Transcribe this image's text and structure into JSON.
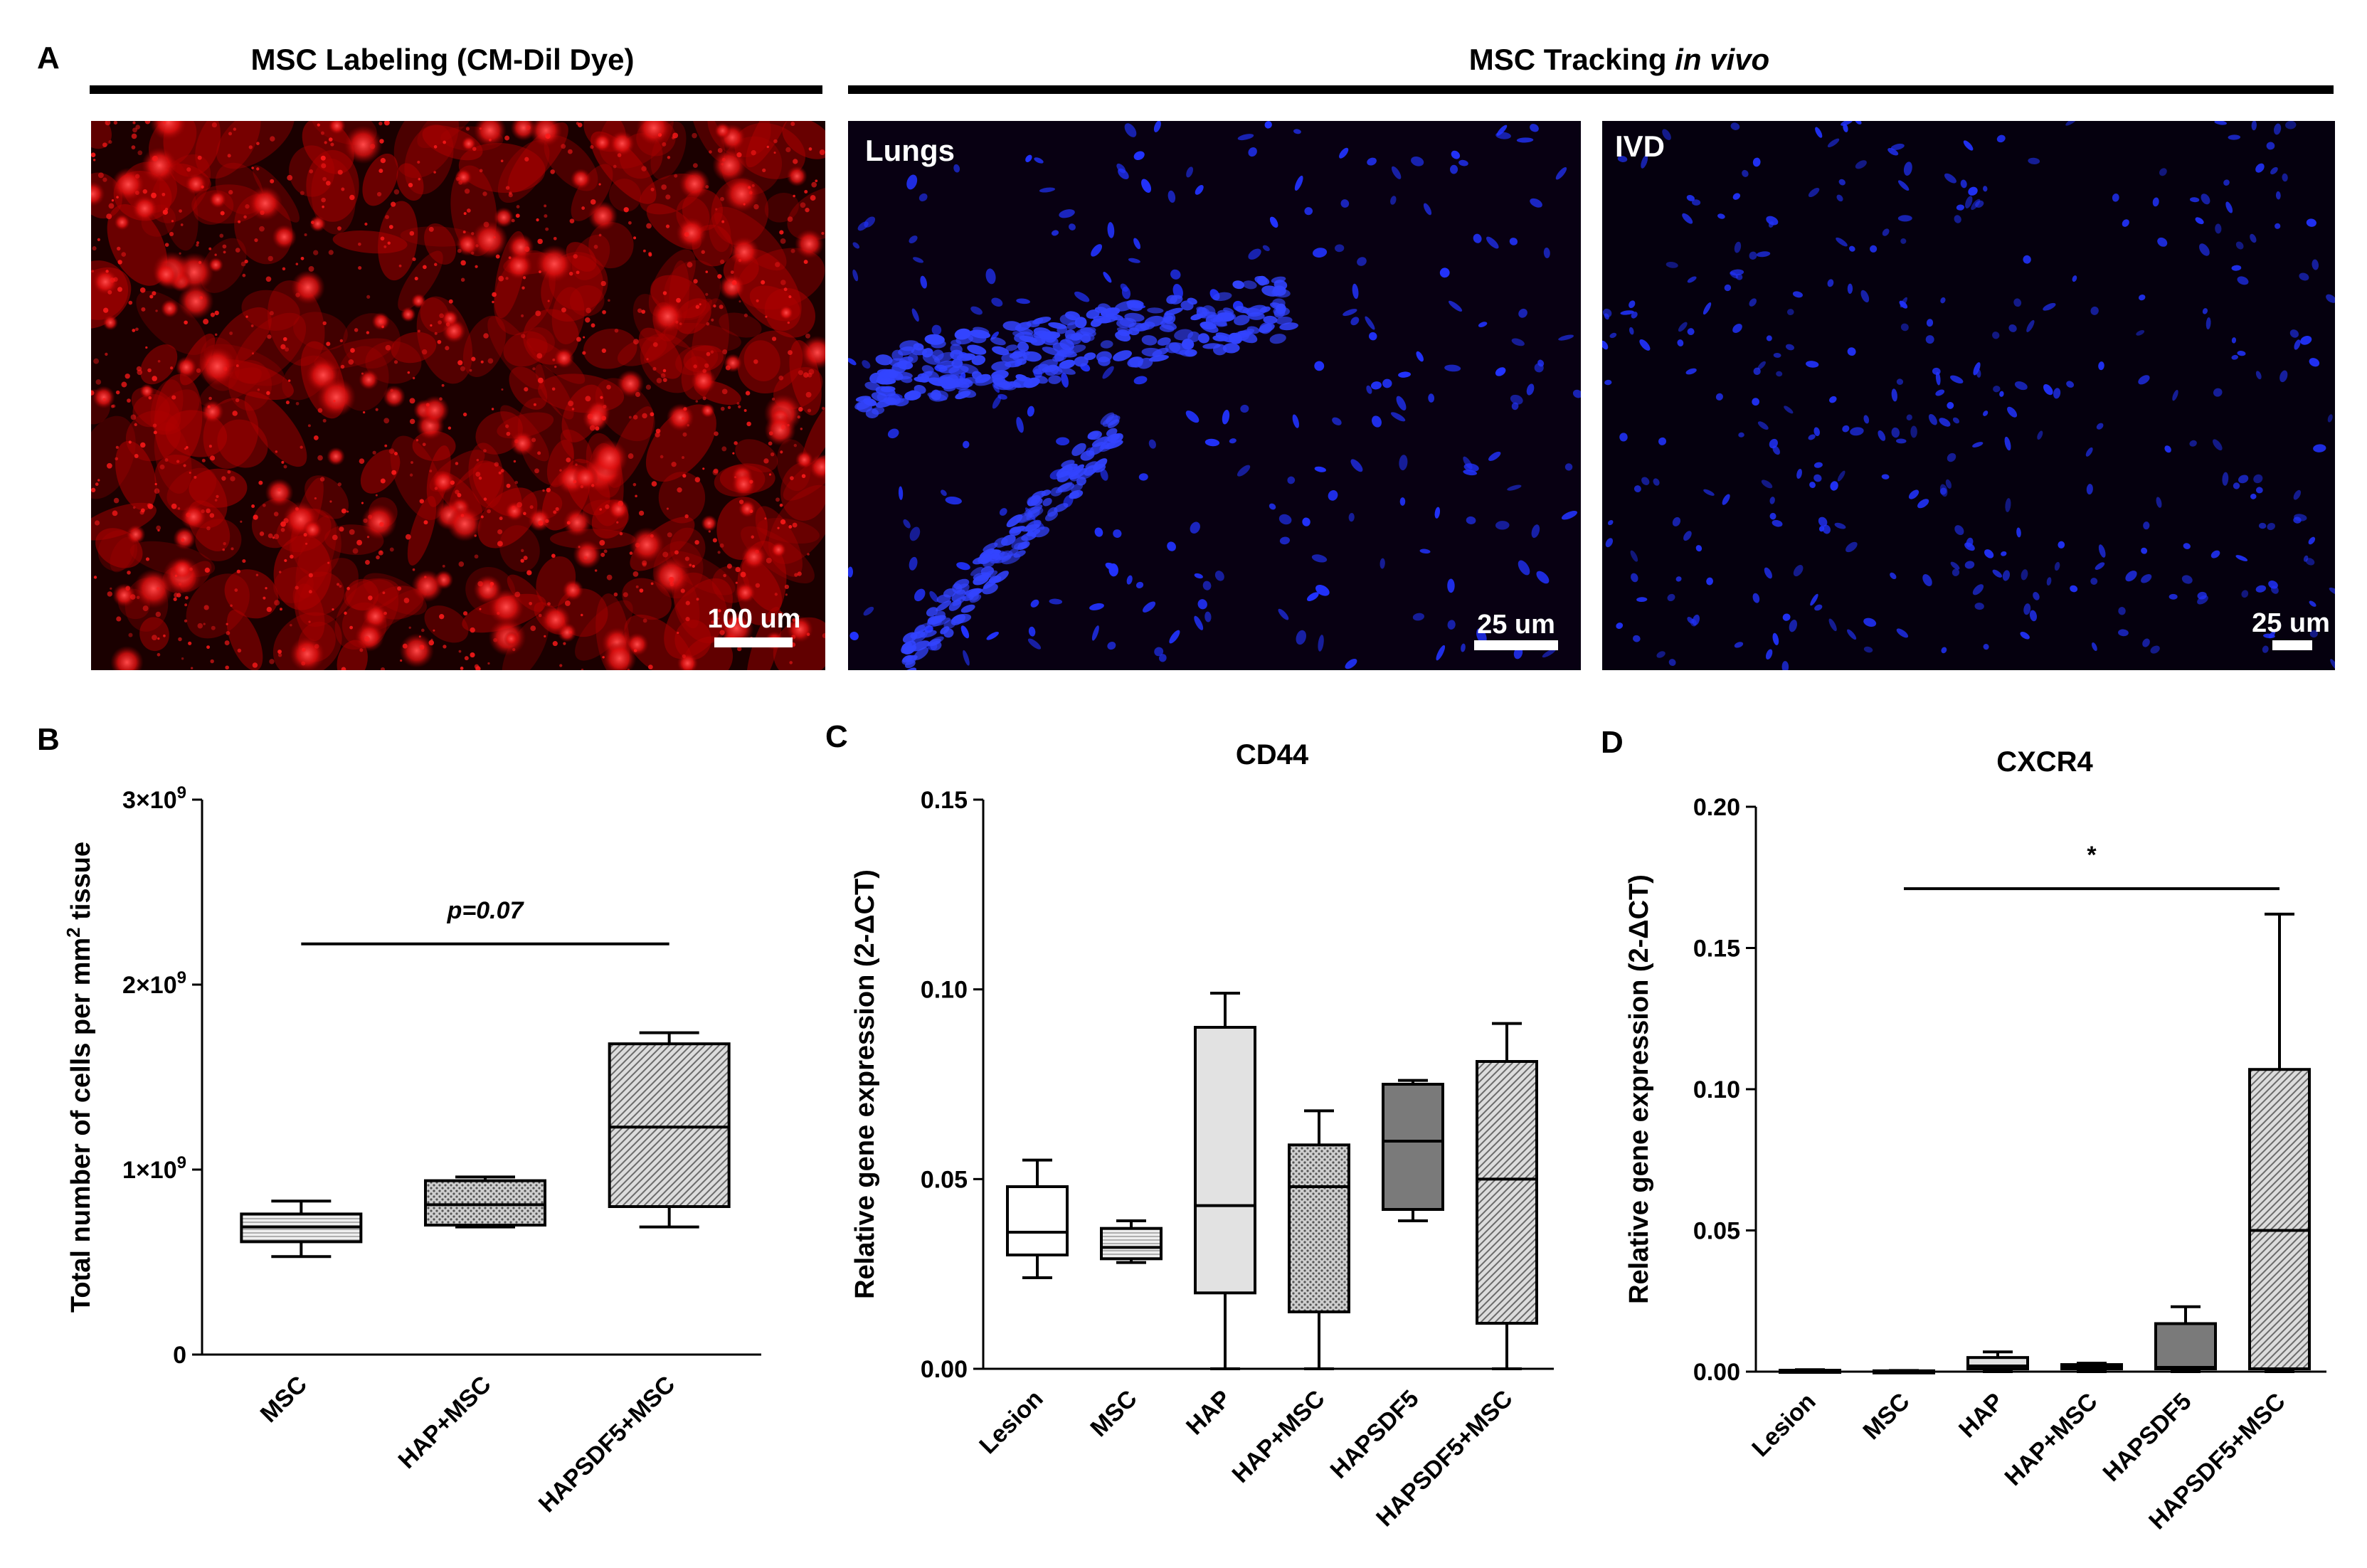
{
  "figure": {
    "panel_letters": {
      "a": "A",
      "b": "B",
      "c": "C",
      "d": "D"
    },
    "header_labeling": "MSC Labeling (CM-Dil Dye)",
    "header_tracking_prefix": "MSC Tracking ",
    "header_tracking_italic": "in vivo",
    "images": [
      {
        "label": "",
        "scalebar": "100 um",
        "stain_color": "#ff1a1a",
        "background": "#1a0000"
      },
      {
        "label": "Lungs",
        "scalebar": "25 um",
        "stain_color": "#2233ff",
        "background": "#080012"
      },
      {
        "label": "IVD",
        "scalebar": "25 um",
        "stain_color": "#2233ff",
        "background": "#05000e"
      }
    ]
  },
  "chart_data": [
    {
      "type": "box",
      "panel": "B",
      "title": "",
      "ylabel_pre": "Total number of cells per mm",
      "ylabel_sup": "2",
      "ylabel_post": " tissue",
      "ylim": [
        0,
        3000000000
      ],
      "ticks": [
        {
          "value": 0,
          "base": "0",
          "sup": ""
        },
        {
          "value": 1000000000,
          "base": "1×10",
          "sup": "9"
        },
        {
          "value": 2000000000,
          "base": "2×10",
          "sup": "9"
        },
        {
          "value": 3000000000,
          "base": "3×10",
          "sup": "9"
        }
      ],
      "categories": [
        "MSC",
        "HAP+MSC",
        "HAPSDF5+MSC"
      ],
      "boxes": [
        {
          "min": 530000000,
          "q1": 610000000,
          "median": 690000000,
          "q3": 760000000,
          "max": 830000000,
          "fill": "light-hatch"
        },
        {
          "min": 690000000,
          "q1": 700000000,
          "median": 810000000,
          "q3": 940000000,
          "max": 960000000,
          "fill": "dots"
        },
        {
          "min": 690000000,
          "q1": 800000000,
          "median": 1230000000,
          "q3": 1680000000,
          "max": 1740000000,
          "fill": "diag-hatch"
        }
      ],
      "annotation": {
        "text": "p=0.07",
        "from": "MSC",
        "to": "HAPSDF5+MSC",
        "y": 2220000000
      }
    },
    {
      "type": "box",
      "panel": "C",
      "title": "CD44",
      "ylabel": "Relative gene expression (2-ΔCT)",
      "ylim": [
        0,
        0.15
      ],
      "ticks": [
        {
          "value": 0,
          "label": "0.00"
        },
        {
          "value": 0.05,
          "label": "0.05"
        },
        {
          "value": 0.1,
          "label": "0.10"
        },
        {
          "value": 0.15,
          "label": "0.15"
        }
      ],
      "categories": [
        "Lesion",
        "MSC",
        "HAP",
        "HAP+MSC",
        "HAPSDF5",
        "HAPSDF5+MSC"
      ],
      "boxes": [
        {
          "min": 0.024,
          "q1": 0.03,
          "median": 0.036,
          "q3": 0.048,
          "max": 0.055,
          "fill": "white"
        },
        {
          "min": 0.028,
          "q1": 0.029,
          "median": 0.032,
          "q3": 0.037,
          "max": 0.039,
          "fill": "light-hatch"
        },
        {
          "min": 0.0,
          "q1": 0.02,
          "median": 0.043,
          "q3": 0.09,
          "max": 0.099,
          "fill": "light-gray"
        },
        {
          "min": 0.0,
          "q1": 0.015,
          "median": 0.048,
          "q3": 0.059,
          "max": 0.068,
          "fill": "dots"
        },
        {
          "min": 0.039,
          "q1": 0.042,
          "median": 0.06,
          "q3": 0.075,
          "max": 0.076,
          "fill": "dark-gray"
        },
        {
          "min": 0.0,
          "q1": 0.012,
          "median": 0.05,
          "q3": 0.081,
          "max": 0.091,
          "fill": "diag-hatch"
        }
      ]
    },
    {
      "type": "box",
      "panel": "D",
      "title": "CXCR4",
      "ylabel": "Relative gene expression (2-ΔCT)",
      "ylim": [
        0,
        0.2
      ],
      "ticks": [
        {
          "value": 0,
          "label": "0.00"
        },
        {
          "value": 0.05,
          "label": "0.05"
        },
        {
          "value": 0.1,
          "label": "0.10"
        },
        {
          "value": 0.15,
          "label": "0.15"
        },
        {
          "value": 0.2,
          "label": "0.20"
        }
      ],
      "categories": [
        "Lesion",
        "MSC",
        "HAP",
        "HAP+MSC",
        "HAPSDF5",
        "HAPSDF5+MSC"
      ],
      "boxes": [
        {
          "min": 0.0,
          "q1": 0.0,
          "median": 0.0,
          "q3": 0.0005,
          "max": 0.0007,
          "fill": "white"
        },
        {
          "min": 0.0,
          "q1": 0.0,
          "median": 0.0,
          "q3": 0.0003,
          "max": 0.0004,
          "fill": "light-hatch"
        },
        {
          "min": 0.0,
          "q1": 0.001,
          "median": 0.002,
          "q3": 0.005,
          "max": 0.007,
          "fill": "light-gray"
        },
        {
          "min": 0.0,
          "q1": 0.001,
          "median": 0.0015,
          "q3": 0.0025,
          "max": 0.003,
          "fill": "dots"
        },
        {
          "min": 0.0,
          "q1": 0.001,
          "median": 0.0015,
          "q3": 0.017,
          "max": 0.023,
          "fill": "dark-gray"
        },
        {
          "min": 0.0,
          "q1": 0.001,
          "median": 0.05,
          "q3": 0.107,
          "max": 0.162,
          "fill": "diag-hatch"
        }
      ],
      "annotation": {
        "text": "*",
        "from": "MSC",
        "to": "HAPSDF5+MSC",
        "y": 0.171
      }
    }
  ]
}
